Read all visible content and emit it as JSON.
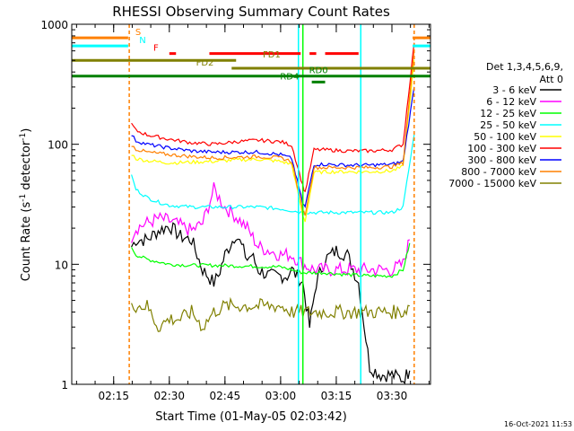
{
  "chart_data": {
    "type": "line",
    "title": "RHESSI Observing Summary Count Rates",
    "xlabel": "Start Time (01-May-05 02:03:42)",
    "ylabel_main": "Count Rate (s",
    "ylabel_sup1": "-1",
    "ylabel_mid": " detector",
    "ylabel_sup2": "-1",
    "ylabel_end": ")",
    "yscale": "log",
    "ylim": [
      1,
      1000
    ],
    "xlim": [
      2.0617,
      3.6733
    ],
    "y_ticks": [
      {
        "v": 1,
        "label": "1"
      },
      {
        "v": 10,
        "label": "10"
      },
      {
        "v": 100,
        "label": "100"
      },
      {
        "v": 1000,
        "label": "1000"
      }
    ],
    "x_ticks": [
      {
        "v": 2.25,
        "label": "02:15"
      },
      {
        "v": 2.5,
        "label": "02:30"
      },
      {
        "v": 2.75,
        "label": "02:45"
      },
      {
        "v": 3.0,
        "label": "03:00"
      },
      {
        "v": 3.25,
        "label": "03:15"
      },
      {
        "v": 3.5,
        "label": "03:30"
      }
    ],
    "timestamp": "16-Oct-2021 11:53",
    "legend_header": [
      "Det 1,3,4,5,6,9,",
      "Att 0"
    ],
    "series": [
      {
        "name": "3 - 6 keV",
        "color": "#000000",
        "x": [
          2.33,
          2.35,
          2.4,
          2.45,
          2.5,
          2.55,
          2.6,
          2.65,
          2.7,
          2.72,
          2.75,
          2.8,
          2.85,
          2.87,
          2.9,
          2.95,
          3.0,
          3.03,
          3.05,
          3.1,
          3.13,
          3.16,
          3.2,
          3.25,
          3.3,
          3.35,
          3.4,
          3.45,
          3.5,
          3.55,
          3.58
        ],
        "y": [
          14,
          16,
          16,
          19,
          21,
          17,
          16,
          9,
          7,
          8,
          12,
          18,
          11,
          12,
          9,
          8,
          8,
          8,
          9,
          7,
          3,
          7,
          11,
          13,
          12,
          7,
          1.4,
          1.2,
          1.2,
          1.1,
          1.3
        ]
      },
      {
        "name": "6 - 12 keV",
        "color": "#ff00ff",
        "x": [
          2.33,
          2.35,
          2.4,
          2.45,
          2.5,
          2.55,
          2.6,
          2.65,
          2.7,
          2.75,
          2.8,
          2.85,
          2.9,
          2.95,
          3.0,
          3.05,
          3.1,
          3.15,
          3.2,
          3.25,
          3.3,
          3.35,
          3.4,
          3.45,
          3.5,
          3.55,
          3.58
        ],
        "y": [
          17,
          20,
          22,
          24,
          23,
          21,
          19,
          22,
          42,
          30,
          25,
          20,
          14,
          13,
          12,
          12,
          10,
          9,
          9,
          9,
          9,
          9,
          9,
          9,
          9,
          10,
          16
        ]
      },
      {
        "name": "12 - 25 keV",
        "color": "#00ff00",
        "x": [
          2.33,
          2.35,
          2.4,
          2.45,
          2.5,
          2.6,
          2.7,
          2.8,
          2.9,
          3.0,
          3.05,
          3.1,
          3.15,
          3.2,
          3.3,
          3.4,
          3.5,
          3.55,
          3.58
        ],
        "y": [
          14,
          12,
          11,
          10.5,
          10,
          9.8,
          9.8,
          9.7,
          9.6,
          9.5,
          9,
          8.5,
          8.5,
          8.5,
          8.2,
          8,
          8,
          9,
          15
        ]
      },
      {
        "name": "25 - 50 keV",
        "color": "#00ffff",
        "x": [
          2.33,
          2.35,
          2.4,
          2.45,
          2.5,
          2.6,
          2.7,
          2.8,
          2.9,
          3.0,
          3.05,
          3.1,
          3.15,
          3.2,
          3.3,
          3.4,
          3.5,
          3.55,
          3.6
        ],
        "y": [
          55,
          42,
          36,
          33,
          31,
          30,
          30,
          30,
          30,
          29,
          28,
          27,
          27,
          27,
          27,
          27,
          27,
          30,
          120
        ]
      },
      {
        "name": "50 - 100 keV",
        "color": "#ffff00",
        "x": [
          2.33,
          2.35,
          2.4,
          2.5,
          2.6,
          2.7,
          2.8,
          2.9,
          3.0,
          3.05,
          3.1,
          3.11,
          3.15,
          3.2,
          3.3,
          3.4,
          3.5,
          3.55,
          3.6
        ],
        "y": [
          83,
          76,
          73,
          70,
          71,
          72,
          74,
          75,
          72,
          68,
          25,
          23,
          58,
          59,
          59,
          59,
          60,
          65,
          500
        ]
      },
      {
        "name": "100 - 300 keV",
        "color": "#ff0000",
        "x": [
          2.33,
          2.35,
          2.4,
          2.5,
          2.6,
          2.7,
          2.8,
          2.9,
          3.0,
          3.05,
          3.1,
          3.11,
          3.15,
          3.2,
          3.3,
          3.4,
          3.5,
          3.55,
          3.6
        ],
        "y": [
          148,
          130,
          120,
          110,
          103,
          100,
          105,
          108,
          105,
          98,
          45,
          40,
          90,
          90,
          88,
          88,
          90,
          100,
          700
        ]
      },
      {
        "name": "300 - 800 keV",
        "color": "#0000ff",
        "x": [
          2.33,
          2.35,
          2.4,
          2.5,
          2.6,
          2.7,
          2.8,
          2.9,
          3.0,
          3.05,
          3.1,
          3.11,
          3.15,
          3.2,
          3.3,
          3.4,
          3.5,
          3.55,
          3.6
        ],
        "y": [
          120,
          107,
          100,
          93,
          88,
          86,
          86,
          86,
          82,
          76,
          32,
          30,
          68,
          68,
          67,
          67,
          68,
          72,
          300
        ]
      },
      {
        "name": "800 - 7000 keV",
        "color": "#ff8000",
        "x": [
          2.33,
          2.35,
          2.4,
          2.5,
          2.6,
          2.7,
          2.8,
          2.9,
          3.0,
          3.05,
          3.1,
          3.11,
          3.15,
          3.2,
          3.3,
          3.4,
          3.5,
          3.55,
          3.6
        ],
        "y": [
          99,
          91,
          86,
          82,
          79,
          77,
          78,
          79,
          77,
          72,
          28,
          26,
          64,
          64,
          64,
          64,
          65,
          70,
          600
        ]
      },
      {
        "name": "7000 - 15000 keV",
        "color": "#808000",
        "x": [
          2.33,
          2.35,
          2.4,
          2.45,
          2.5,
          2.55,
          2.6,
          2.65,
          2.7,
          2.75,
          2.8,
          2.85,
          2.9,
          2.95,
          3.0,
          3.05,
          3.1,
          3.15,
          3.2,
          3.25,
          3.3,
          3.35,
          3.4,
          3.45,
          3.5,
          3.55,
          3.58
        ],
        "y": [
          5,
          4.5,
          4.5,
          3,
          3.5,
          3.5,
          4,
          3,
          4,
          4.5,
          4.5,
          4.5,
          4.5,
          4.5,
          4.5,
          4,
          4,
          4,
          4,
          4,
          4,
          4,
          4,
          4,
          4,
          4,
          4.5
        ]
      }
    ],
    "flag_bars": [
      {
        "label": "S",
        "color": "#ff8000",
        "y": 770,
        "segments": [
          [
            2.062,
            2.315
          ],
          [
            3.593,
            3.673
          ]
        ]
      },
      {
        "label": "N",
        "color": "#00ffff",
        "y": 660,
        "segments": [
          [
            2.062,
            2.315
          ],
          [
            3.593,
            3.673
          ]
        ]
      },
      {
        "label": "F",
        "color": "#ff0000",
        "y": 570,
        "segments": [
          [
            2.5,
            2.53
          ],
          [
            2.68,
            3.09
          ],
          [
            3.13,
            3.16
          ],
          [
            3.2,
            3.35
          ]
        ]
      },
      {
        "label": "FD1",
        "color": "#808000",
        "y": 500,
        "segments": [
          [
            2.062,
            2.8
          ]
        ]
      },
      {
        "label": "FD2",
        "color": "#808000",
        "y": 430,
        "segments": [
          [
            2.78,
            3.673
          ]
        ]
      },
      {
        "label": "RD0",
        "color": "#008000",
        "y": 370,
        "segments": [
          [
            2.062,
            3.673
          ]
        ]
      },
      {
        "label": "RD4",
        "color": "#008000",
        "y": 330,
        "segments": [
          [
            3.14,
            3.2
          ]
        ]
      }
    ],
    "flag_label_positions": [
      {
        "label": "S",
        "x": 2.36
      },
      {
        "label": "N",
        "x": 2.38
      },
      {
        "label": "F",
        "x": 2.44
      },
      {
        "label": "FD1",
        "x": 2.96
      },
      {
        "label": "FD2",
        "x": 2.66
      },
      {
        "label": "RD0",
        "x": 3.17
      },
      {
        "label": "RD4",
        "x": 3.04
      }
    ],
    "vlines": [
      {
        "x": 2.32,
        "color": "#ff8000",
        "style": "dashed"
      },
      {
        "x": 3.6,
        "color": "#ff8000",
        "style": "dashed"
      },
      {
        "x": 3.08,
        "color": "#00ffff",
        "style": "solid"
      },
      {
        "x": 3.36,
        "color": "#00ffff",
        "style": "solid"
      },
      {
        "x": 3.1,
        "color": "#00ff00",
        "style": "solid"
      }
    ]
  }
}
